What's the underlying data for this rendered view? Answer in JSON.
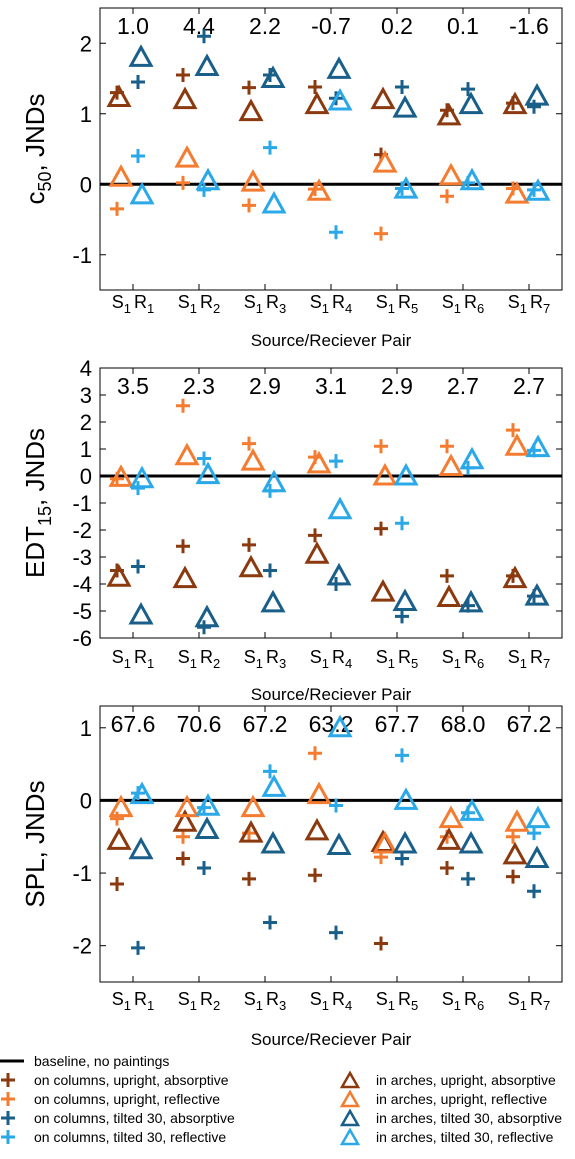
{
  "colors": {
    "baseline": "#000000",
    "columns_upright_absorptive": "#8B3A0F",
    "columns_upright_reflective": "#F47C30",
    "columns_tilted_absorptive": "#1A5F8A",
    "columns_tilted_reflective": "#2AA8E8",
    "arches_upright_absorptive": "#8B3A0F",
    "arches_upright_reflective": "#F47C30",
    "arches_tilted_absorptive": "#1A5F8A",
    "arches_tilted_reflective": "#2AA8E8"
  },
  "legend": {
    "items": [
      {
        "key": "baseline",
        "label": "baseline, no paintings",
        "marker": "line"
      },
      {
        "key": "columns_upright_absorptive",
        "label": "on columns, upright, absorptive",
        "marker": "plus"
      },
      {
        "key": "columns_upright_reflective",
        "label": "on columns, upright, reflective",
        "marker": "plus"
      },
      {
        "key": "columns_tilted_absorptive",
        "label": "on columns, tilted 30, absorptive",
        "marker": "plus"
      },
      {
        "key": "columns_tilted_reflective",
        "label": "on columns, tilted 30, reflective",
        "marker": "plus"
      },
      {
        "key": "arches_upright_absorptive",
        "label": "in arches, upright, absorptive",
        "marker": "triangle"
      },
      {
        "key": "arches_upright_reflective",
        "label": "in arches, upright, reflective",
        "marker": "triangle"
      },
      {
        "key": "arches_tilted_absorptive",
        "label": "in arches, tilted 30, absorptive",
        "marker": "triangle"
      },
      {
        "key": "arches_tilted_reflective",
        "label": "in arches, tilted 30, reflective",
        "marker": "triangle"
      }
    ]
  },
  "chart_data": [
    {
      "type": "scatter",
      "ylabel": "c50, JNDs",
      "ylabel_main": "c",
      "ylabel_sub": "50",
      "ylabel_rest": ", JNDs",
      "xlabel": "Source/Reciever Pair",
      "ylim": [
        -1.5,
        2.5
      ],
      "yticks": [
        -1,
        0,
        1,
        2
      ],
      "categories": [
        "S1R1",
        "S1R2",
        "S1R3",
        "S1R4",
        "S1R5",
        "S1R6",
        "S1R7"
      ],
      "category_labels": [
        [
          "S",
          "1",
          "R",
          "1"
        ],
        [
          "S",
          "1",
          "R",
          "2"
        ],
        [
          "S",
          "1",
          "R",
          "3"
        ],
        [
          "S",
          "1",
          "R",
          "4"
        ],
        [
          "S",
          "1",
          "R",
          "5"
        ],
        [
          "S",
          "1",
          "R",
          "6"
        ],
        [
          "S",
          "1",
          "R",
          "7"
        ]
      ],
      "baseline_labels": [
        "1.0",
        "4.4",
        "2.2",
        "-0.7",
        "0.2",
        "0.1",
        "-1.6"
      ],
      "series": [
        {
          "key": "columns_upright_absorptive",
          "values": [
            1.3,
            1.55,
            1.37,
            1.38,
            0.42,
            1.05,
            1.15
          ]
        },
        {
          "key": "columns_upright_reflective",
          "values": [
            -0.35,
            0.02,
            -0.3,
            -0.07,
            -0.7,
            -0.17,
            -0.06
          ]
        },
        {
          "key": "columns_tilted_absorptive",
          "values": [
            1.45,
            2.1,
            1.55,
            1.22,
            1.38,
            1.35,
            1.1
          ]
        },
        {
          "key": "columns_tilted_reflective",
          "values": [
            0.4,
            -0.08,
            0.52,
            -0.68,
            -0.06,
            0.02,
            -0.08
          ]
        },
        {
          "key": "arches_upright_absorptive",
          "values": [
            1.23,
            1.2,
            1.03,
            1.13,
            1.2,
            0.97,
            1.13
          ]
        },
        {
          "key": "arches_upright_reflective",
          "values": [
            0.1,
            0.37,
            0.03,
            -0.1,
            0.3,
            0.12,
            -0.14
          ]
        },
        {
          "key": "arches_tilted_absorptive",
          "values": [
            1.8,
            1.67,
            1.5,
            1.63,
            1.08,
            1.13,
            1.25
          ]
        },
        {
          "key": "arches_tilted_reflective",
          "values": [
            -0.15,
            0.05,
            -0.28,
            1.18,
            -0.07,
            0.05,
            -0.1
          ]
        }
      ]
    },
    {
      "type": "scatter",
      "ylabel": "EDT15, JNDs",
      "ylabel_main": "EDT",
      "ylabel_sub": "15",
      "ylabel_rest": ", JNDs",
      "xlabel": "Source/Reciever Pair",
      "ylim": [
        -6,
        4
      ],
      "yticks": [
        -6,
        -5,
        -4,
        -3,
        -2,
        -1,
        0,
        1,
        2,
        3,
        4
      ],
      "categories": [
        "S1R1",
        "S1R2",
        "S1R3",
        "S1R4",
        "S1R5",
        "S1R6",
        "S1R7"
      ],
      "category_labels": [
        [
          "S",
          "1",
          "R",
          "1"
        ],
        [
          "S",
          "1",
          "R",
          "2"
        ],
        [
          "S",
          "1",
          "R",
          "3"
        ],
        [
          "S",
          "1",
          "R",
          "4"
        ],
        [
          "S",
          "1",
          "R",
          "5"
        ],
        [
          "S",
          "1",
          "R",
          "6"
        ],
        [
          "S",
          "1",
          "R",
          "7"
        ]
      ],
      "baseline_labels": [
        "3.5",
        "2.3",
        "2.9",
        "3.1",
        "2.9",
        "2.7",
        "2.7"
      ],
      "series": [
        {
          "key": "columns_upright_absorptive",
          "values": [
            -3.5,
            -2.6,
            -2.55,
            -2.2,
            -1.95,
            -3.7,
            -3.7
          ]
        },
        {
          "key": "columns_upright_reflective",
          "values": [
            -0.1,
            2.6,
            1.2,
            0.7,
            1.1,
            1.1,
            1.7
          ]
        },
        {
          "key": "columns_tilted_absorptive",
          "values": [
            -3.35,
            -5.6,
            -3.5,
            -4.0,
            -5.2,
            -4.8,
            -4.45
          ]
        },
        {
          "key": "columns_tilted_reflective",
          "values": [
            -0.45,
            0.65,
            -0.55,
            0.55,
            -1.75,
            0.3,
            0.95
          ]
        },
        {
          "key": "arches_upright_absorptive",
          "values": [
            -3.75,
            -3.8,
            -3.4,
            -2.9,
            -4.3,
            -4.5,
            -3.8
          ]
        },
        {
          "key": "arches_upright_reflective",
          "values": [
            -0.05,
            0.75,
            0.55,
            0.45,
            0.0,
            0.35,
            1.1
          ]
        },
        {
          "key": "arches_tilted_absorptive",
          "values": [
            -5.15,
            -5.25,
            -4.7,
            -3.7,
            -4.65,
            -4.7,
            -4.45
          ]
        },
        {
          "key": "arches_tilted_reflective",
          "values": [
            -0.1,
            0.05,
            -0.25,
            -1.25,
            0.0,
            0.6,
            1.05
          ]
        }
      ]
    },
    {
      "type": "scatter",
      "ylabel": "SPL, JNDs",
      "ylabel_main": "SPL, JNDs",
      "ylabel_sub": "",
      "ylabel_rest": "",
      "xlabel": "Source/Reciever Pair",
      "ylim": [
        -2.5,
        1.3
      ],
      "yticks": [
        -2,
        -1,
        0,
        1
      ],
      "categories": [
        "S1R1",
        "S1R2",
        "S1R3",
        "S1R4",
        "S1R5",
        "S1R6",
        "S1R7"
      ],
      "category_labels": [
        [
          "S",
          "1",
          "R",
          "1"
        ],
        [
          "S",
          "1",
          "R",
          "2"
        ],
        [
          "S",
          "1",
          "R",
          "3"
        ],
        [
          "S",
          "1",
          "R",
          "4"
        ],
        [
          "S",
          "1",
          "R",
          "5"
        ],
        [
          "S",
          "1",
          "R",
          "6"
        ],
        [
          "S",
          "1",
          "R",
          "7"
        ]
      ],
      "baseline_labels": [
        "67.6",
        "70.6",
        "67.2",
        "63.2",
        "67.7",
        "68.0",
        "67.2"
      ],
      "series": [
        {
          "key": "columns_upright_absorptive",
          "values": [
            -1.15,
            -0.8,
            -1.08,
            -1.03,
            -1.97,
            -0.93,
            -1.05
          ]
        },
        {
          "key": "columns_upright_reflective",
          "values": [
            -0.25,
            -0.5,
            -0.45,
            0.65,
            -0.78,
            -0.5,
            -0.5
          ]
        },
        {
          "key": "columns_tilted_absorptive",
          "values": [
            -2.03,
            -0.93,
            -1.68,
            -1.82,
            -0.8,
            -1.08,
            -1.25
          ]
        },
        {
          "key": "columns_tilted_reflective",
          "values": [
            0.1,
            -0.1,
            0.4,
            -0.07,
            0.62,
            -0.17,
            -0.45
          ]
        },
        {
          "key": "arches_upright_absorptive",
          "values": [
            -0.55,
            -0.3,
            -0.45,
            -0.42,
            -0.58,
            -0.55,
            -0.75
          ]
        },
        {
          "key": "arches_upright_reflective",
          "values": [
            -0.1,
            -0.1,
            -0.1,
            0.08,
            -0.6,
            -0.25,
            -0.3
          ]
        },
        {
          "key": "arches_tilted_absorptive",
          "values": [
            -0.68,
            -0.4,
            -0.6,
            -0.62,
            -0.6,
            -0.6,
            -0.8
          ]
        },
        {
          "key": "arches_tilted_reflective",
          "values": [
            0.08,
            -0.08,
            0.18,
            1.0,
            0.0,
            -0.15,
            -0.25
          ]
        }
      ]
    }
  ]
}
